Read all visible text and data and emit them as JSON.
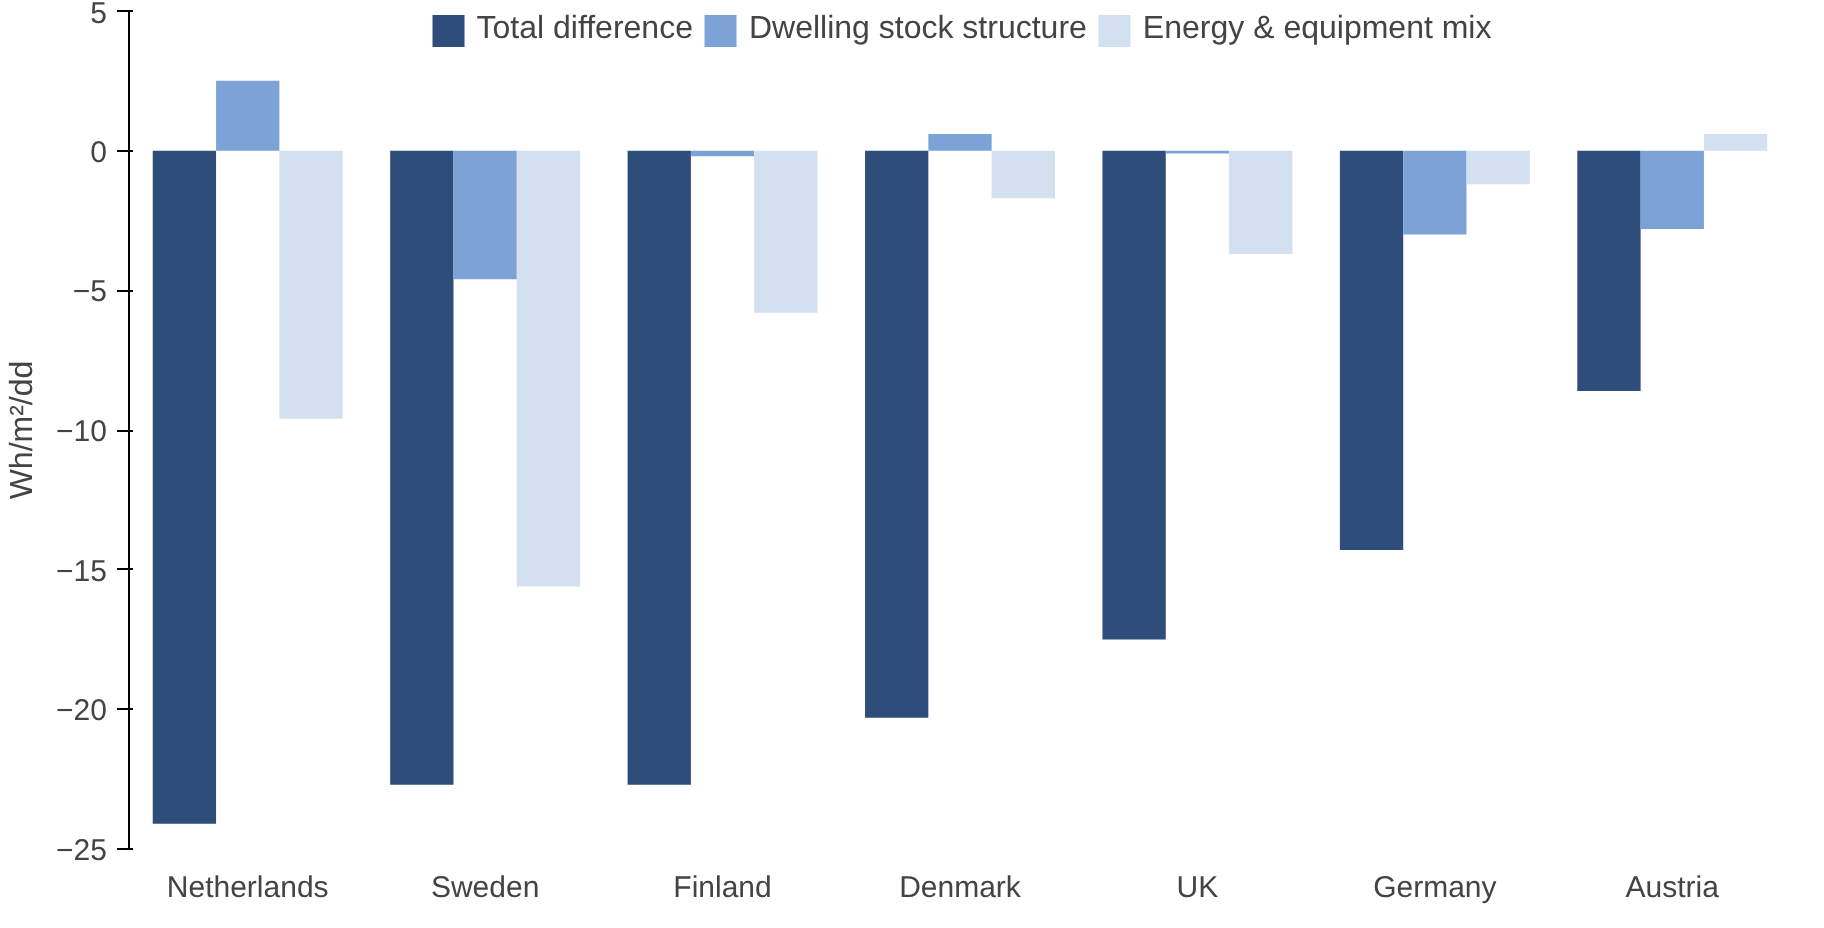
{
  "chart_data": {
    "type": "bar",
    "ylabel": "Wh/m²/dd",
    "categories": [
      "Netherlands",
      "Sweden",
      "Finland",
      "Denmark",
      "UK",
      "Germany",
      "Austria"
    ],
    "series": [
      {
        "name": "Total difference",
        "color": "#2e4d7b",
        "values": [
          -24.1,
          -22.7,
          -22.7,
          -20.3,
          -17.5,
          -14.3,
          -8.6
        ]
      },
      {
        "name": "Dwelling stock structure",
        "color": "#7da3d6",
        "values": [
          2.5,
          -4.6,
          -0.2,
          0.6,
          -0.1,
          -3.0,
          -2.8
        ]
      },
      {
        "name": "Energy & equipment mix",
        "color": "#d3e0f0",
        "values": [
          -9.6,
          -15.6,
          -5.8,
          -1.7,
          -3.7,
          -1.2,
          0.6
        ]
      }
    ],
    "ylim": [
      -25,
      5
    ],
    "yticks": [
      -25,
      -20,
      -15,
      -10,
      -5,
      0,
      5
    ],
    "grid": false,
    "legend": "top"
  }
}
